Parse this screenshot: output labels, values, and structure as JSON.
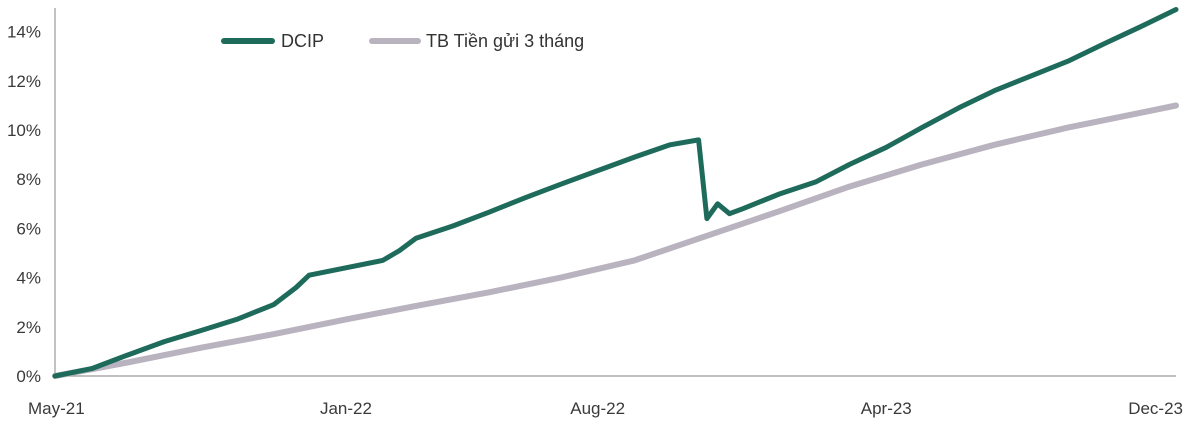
{
  "chart_data": {
    "type": "line",
    "title": "",
    "xlabel": "",
    "ylabel": "",
    "ylim": [
      0,
      14.8
    ],
    "y_ticks": [
      "0%",
      "2%",
      "4%",
      "6%",
      "8%",
      "10%",
      "12%",
      "14%"
    ],
    "y_tick_values": [
      0,
      2,
      4,
      6,
      8,
      10,
      12,
      14
    ],
    "x_ticks": [
      "May-21",
      "Jan-22",
      "Aug-22",
      "Apr-23",
      "Dec-23"
    ],
    "x_tick_values": [
      "2021-05",
      "2022-01",
      "2022-08",
      "2023-04",
      "2023-12"
    ],
    "grid": false,
    "legend_placement": "top-left",
    "series": [
      {
        "name": "DCIP",
        "color": "#1f6b5b",
        "x": [
          "2021-05",
          "2021-06",
          "2021-07",
          "2021-08",
          "2021-09",
          "2021-10",
          "2021-11",
          "2021-11-20",
          "2021-12",
          "2022-01",
          "2022-02",
          "2022-02-15",
          "2022-03",
          "2022-04",
          "2022-05",
          "2022-06",
          "2022-07",
          "2022-08",
          "2022-09",
          "2022-10",
          "2022-10-25",
          "2022-11",
          "2022-11-10",
          "2022-11-20",
          "2022-12",
          "2023-01",
          "2023-02",
          "2023-03",
          "2023-04",
          "2023-05",
          "2023-06",
          "2023-07",
          "2023-08",
          "2023-09",
          "2023-10",
          "2023-11",
          "2023-12"
        ],
        "y": [
          0.0,
          0.3,
          0.85,
          1.4,
          1.85,
          2.3,
          2.9,
          3.6,
          4.1,
          4.4,
          4.7,
          5.1,
          5.6,
          6.1,
          6.65,
          7.25,
          7.8,
          8.35,
          8.9,
          9.4,
          9.6,
          6.4,
          7.0,
          6.6,
          6.8,
          7.4,
          7.9,
          8.6,
          9.3,
          10.1,
          10.9,
          11.6,
          12.2,
          12.8,
          13.5,
          14.2,
          14.9
        ]
      },
      {
        "name": "TB Tiền gửi 3 tháng",
        "color": "#b9b3c0",
        "x": [
          "2021-05",
          "2021-07",
          "2021-09",
          "2021-11",
          "2022-01",
          "2022-03",
          "2022-05",
          "2022-07",
          "2022-09",
          "2022-11",
          "2023-01",
          "2023-03",
          "2023-05",
          "2023-07",
          "2023-09",
          "2023-11",
          "2023-12"
        ],
        "y": [
          0.0,
          0.55,
          1.15,
          1.7,
          2.3,
          2.85,
          3.4,
          4.0,
          4.7,
          5.7,
          6.7,
          7.7,
          8.6,
          9.4,
          10.1,
          10.7,
          11.0
        ]
      }
    ]
  }
}
